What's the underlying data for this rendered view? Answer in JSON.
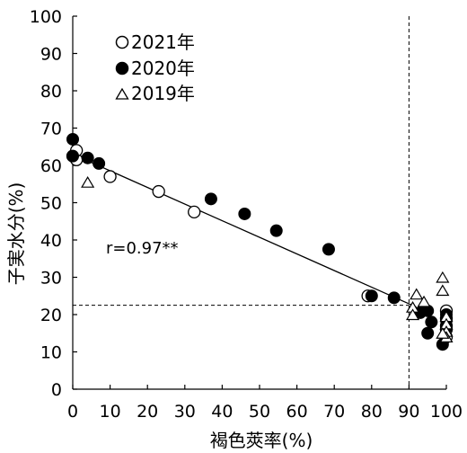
{
  "chart_data": {
    "type": "scatter",
    "title": "",
    "xlabel": "褐色莢率(%)",
    "ylabel": "子実水分(%)",
    "xlim": [
      0,
      100
    ],
    "ylim": [
      0,
      100
    ],
    "x_ticks": [
      0,
      10,
      20,
      30,
      40,
      50,
      60,
      70,
      80,
      90,
      100
    ],
    "y_ticks": [
      0,
      10,
      20,
      30,
      40,
      50,
      60,
      70,
      80,
      90,
      100
    ],
    "legend_position": "top-left",
    "series": [
      {
        "name": "2021年",
        "marker": "open-circle",
        "points": [
          [
            0,
            62.5
          ],
          [
            1,
            61.5
          ],
          [
            1,
            64
          ],
          [
            10,
            57
          ],
          [
            23,
            53
          ],
          [
            32.5,
            47.5
          ],
          [
            79,
            25
          ],
          [
            100,
            21
          ],
          [
            100,
            19
          ],
          [
            100,
            17
          ],
          [
            100,
            14
          ],
          [
            100,
            16
          ]
        ]
      },
      {
        "name": "2020年",
        "marker": "filled-circle",
        "points": [
          [
            0,
            67
          ],
          [
            0,
            62.5
          ],
          [
            4,
            62
          ],
          [
            7,
            60.5
          ],
          [
            37,
            51
          ],
          [
            46,
            47
          ],
          [
            54.5,
            42.5
          ],
          [
            68.5,
            37.5
          ],
          [
            80,
            25
          ],
          [
            86,
            24.5
          ],
          [
            93,
            20.5
          ],
          [
            95,
            21
          ],
          [
            95,
            15
          ],
          [
            96,
            18
          ],
          [
            99,
            12
          ],
          [
            100,
            18.5
          ],
          [
            100,
            20
          ],
          [
            100,
            16.5
          ]
        ]
      },
      {
        "name": "2019年",
        "marker": "open-triangle",
        "points": [
          [
            4,
            55.5
          ],
          [
            91,
            22
          ],
          [
            92,
            25.5
          ],
          [
            91,
            20
          ],
          [
            94,
            23.5
          ],
          [
            99,
            30
          ],
          [
            99,
            26.5
          ],
          [
            100,
            19.5
          ],
          [
            100,
            17.5
          ],
          [
            100,
            15.5
          ],
          [
            100,
            14
          ],
          [
            99,
            15
          ]
        ]
      }
    ],
    "regression_line": {
      "x": [
        0,
        92
      ],
      "y": [
        63,
        22
      ]
    },
    "reference_lines": {
      "vertical_x": 90,
      "horizontal_y": 22.5
    },
    "annotations": [
      {
        "text": "r=0.97**"
      }
    ]
  }
}
